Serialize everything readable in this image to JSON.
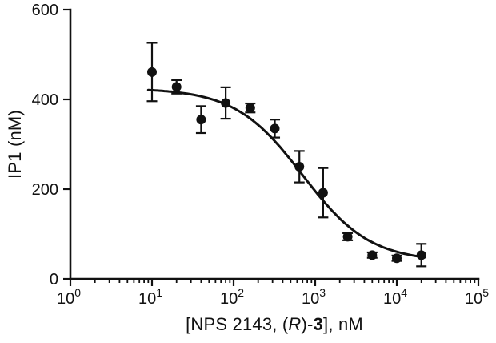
{
  "figure": {
    "background": "#ffffff",
    "ink_color": "#111111"
  },
  "chart_data": {
    "type": "scatter",
    "title": "",
    "ylabel": "IP1 (nM)",
    "xlabel_parts": {
      "pre": "[NPS 2143, (",
      "italic": "R",
      "mid": ")-",
      "bold": "3",
      "post": "], nM"
    },
    "x_scale": "log10",
    "x_range_exponents": [
      0,
      5
    ],
    "x_tick_exponents": [
      0,
      1,
      2,
      3,
      4,
      5
    ],
    "x_minor_ticks": true,
    "ylim": [
      0,
      600
    ],
    "y_ticks": [
      0,
      200,
      400,
      600
    ],
    "grid": false,
    "legend": false,
    "marker_color": "#111111",
    "line_color": "#111111",
    "points": {
      "x": [
        10,
        20,
        40,
        80,
        160,
        320,
        640,
        1250,
        2500,
        5000,
        10000,
        20000
      ],
      "y": [
        461,
        428,
        355,
        392,
        381,
        335,
        250,
        192,
        94,
        53,
        46,
        53
      ],
      "yerr": [
        65,
        15,
        30,
        35,
        10,
        20,
        35,
        55,
        8,
        6,
        6,
        25
      ]
    },
    "fit_curve": {
      "model": "4PL",
      "top": 425,
      "bottom": 38,
      "ic50": 700,
      "hill": 1.05,
      "x_start": 9,
      "x_end": 22000
    }
  }
}
